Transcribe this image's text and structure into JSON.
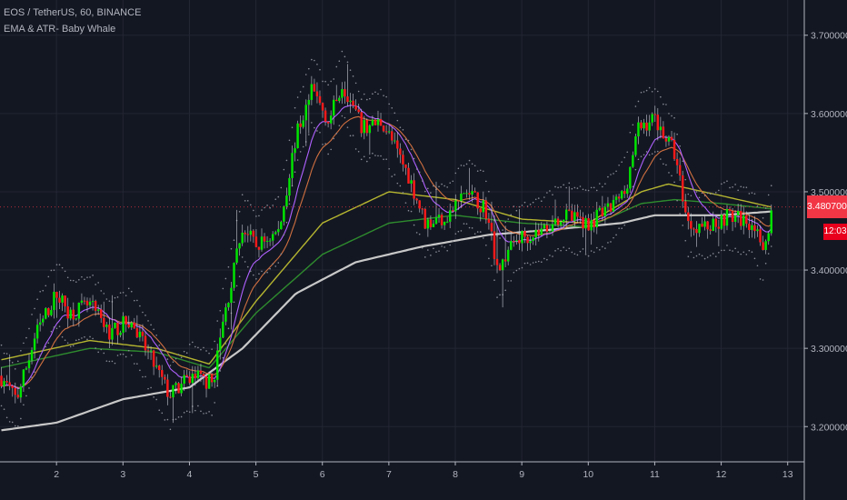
{
  "header": {
    "symbol_line": "EOS / TetherUS, 60, BINANCE",
    "indicator_line": "EMA & ATR- Baby Whale"
  },
  "price_axis": {
    "last_price": "3.48070000",
    "countdown": "12:03"
  },
  "colors": {
    "background": "#131722",
    "grid": "#232633",
    "up_candle": "#00e600",
    "down_candle": "#ff1a1a",
    "ema_fast": "#b061ff",
    "ema_mid": "#d07040",
    "ema_slow": "#b5b530",
    "ema_green": "#2e8b2e",
    "ema_200": "#c8c8c8",
    "atr_dots": "#8a8d96"
  },
  "chart_data": {
    "type": "candlestick",
    "title": "EOS / TetherUS, 60, BINANCE",
    "indicator": "EMA & ATR- Baby Whale",
    "ylim": [
      3.155,
      3.745
    ],
    "y_ticks": [
      "3.20000000",
      "3.30000000",
      "3.40000000",
      "3.50000000",
      "3.60000000",
      "3.70000000"
    ],
    "x_ticks": [
      "2",
      "3",
      "4",
      "5",
      "6",
      "7",
      "8",
      "9",
      "10",
      "11",
      "12",
      "13"
    ],
    "x_tick_days": [
      2,
      3,
      4,
      5,
      6,
      7,
      8,
      9,
      10,
      11,
      12,
      13
    ],
    "xlim_days": [
      1.15,
      13.25
    ],
    "last_day": 12.78,
    "price_path": [
      [
        1.15,
        3.265
      ],
      [
        1.4,
        3.235
      ],
      [
        1.7,
        3.32
      ],
      [
        2.0,
        3.37
      ],
      [
        2.2,
        3.345
      ],
      [
        2.5,
        3.355
      ],
      [
        2.8,
        3.32
      ],
      [
        3.1,
        3.335
      ],
      [
        3.4,
        3.29
      ],
      [
        3.7,
        3.24
      ],
      [
        4.05,
        3.265
      ],
      [
        4.35,
        3.255
      ],
      [
        4.5,
        3.33
      ],
      [
        4.8,
        3.455
      ],
      [
        5.0,
        3.43
      ],
      [
        5.35,
        3.45
      ],
      [
        5.6,
        3.57
      ],
      [
        5.85,
        3.63
      ],
      [
        6.1,
        3.59
      ],
      [
        6.3,
        3.64
      ],
      [
        6.6,
        3.58
      ],
      [
        6.9,
        3.59
      ],
      [
        7.3,
        3.52
      ],
      [
        7.55,
        3.46
      ],
      [
        7.9,
        3.47
      ],
      [
        8.15,
        3.5
      ],
      [
        8.45,
        3.48
      ],
      [
        8.65,
        3.4
      ],
      [
        8.9,
        3.44
      ],
      [
        9.3,
        3.45
      ],
      [
        9.6,
        3.47
      ],
      [
        10.0,
        3.46
      ],
      [
        10.3,
        3.475
      ],
      [
        10.55,
        3.5
      ],
      [
        10.75,
        3.58
      ],
      [
        11.0,
        3.595
      ],
      [
        11.3,
        3.55
      ],
      [
        11.5,
        3.46
      ],
      [
        11.8,
        3.455
      ],
      [
        12.1,
        3.47
      ],
      [
        12.5,
        3.46
      ],
      [
        12.6,
        3.42
      ],
      [
        12.78,
        3.48
      ]
    ],
    "ema_200_path": [
      [
        1.15,
        3.195
      ],
      [
        2.0,
        3.205
      ],
      [
        3.0,
        3.235
      ],
      [
        4.0,
        3.25
      ],
      [
        4.8,
        3.3
      ],
      [
        5.6,
        3.37
      ],
      [
        6.5,
        3.41
      ],
      [
        7.5,
        3.43
      ],
      [
        8.5,
        3.445
      ],
      [
        9.5,
        3.452
      ],
      [
        10.5,
        3.46
      ],
      [
        11.0,
        3.47
      ],
      [
        12.0,
        3.47
      ],
      [
        12.78,
        3.475
      ]
    ],
    "ema_slow_path": [
      [
        1.15,
        3.285
      ],
      [
        2.5,
        3.31
      ],
      [
        3.5,
        3.3
      ],
      [
        4.3,
        3.28
      ],
      [
        5.0,
        3.36
      ],
      [
        6.0,
        3.46
      ],
      [
        7.0,
        3.5
      ],
      [
        8.0,
        3.49
      ],
      [
        9.0,
        3.465
      ],
      [
        10.0,
        3.46
      ],
      [
        10.8,
        3.5
      ],
      [
        11.2,
        3.51
      ],
      [
        12.0,
        3.495
      ],
      [
        12.78,
        3.48
      ]
    ],
    "ema_green_path": [
      [
        1.15,
        3.275
      ],
      [
        2.5,
        3.3
      ],
      [
        3.5,
        3.295
      ],
      [
        4.3,
        3.275
      ],
      [
        5.0,
        3.345
      ],
      [
        6.0,
        3.42
      ],
      [
        7.0,
        3.46
      ],
      [
        8.0,
        3.47
      ],
      [
        9.0,
        3.46
      ],
      [
        10.0,
        3.455
      ],
      [
        10.8,
        3.485
      ],
      [
        11.3,
        3.49
      ],
      [
        12.0,
        3.485
      ],
      [
        12.78,
        3.478
      ]
    ],
    "atr_offset": 0.035,
    "seed": 7
  }
}
